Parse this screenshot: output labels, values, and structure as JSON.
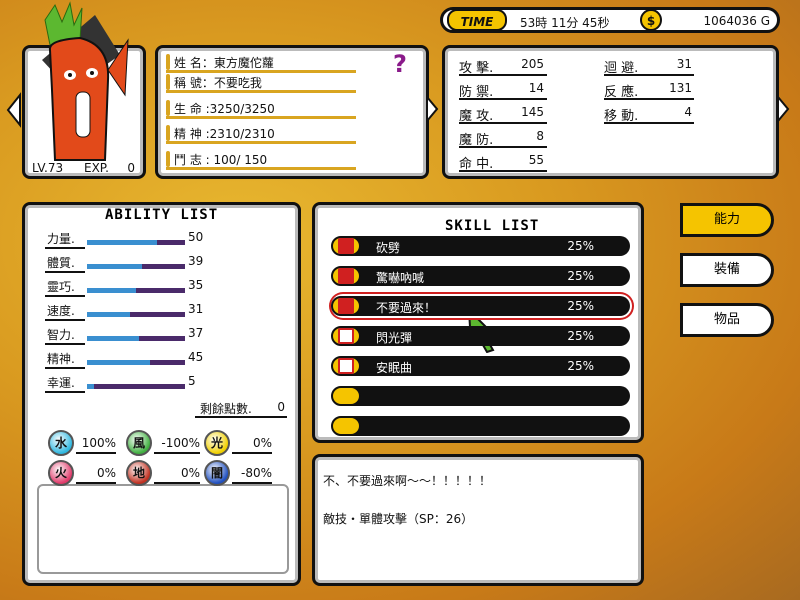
{
  "header": {
    "time_label": "TIME",
    "time": "53時 11分 45秒",
    "money_icon": "$",
    "money": "1064036 G"
  },
  "character": {
    "level": "LV.73",
    "exp_label": "EXP.",
    "exp": "0"
  },
  "profile": {
    "help": "?",
    "rows": [
      "姓 名：東方魔佗蘿",
      "稱 號：不要吃我",
      "生 命 :3250/3250",
      "精 神 :2310/2310",
      "鬥 志 : 100/ 150"
    ]
  },
  "stats": [
    {
      "label": "攻 擊.",
      "value": 205
    },
    {
      "label": "防 禦.",
      "value": 14
    },
    {
      "label": "魔 攻.",
      "value": 145
    },
    {
      "label": "魔 防.",
      "value": 8
    },
    {
      "label": "命 中.",
      "value": 55
    },
    {
      "label": "迴 避.",
      "value": 31
    },
    {
      "label": "反 應.",
      "value": 131
    },
    {
      "label": "移 動.",
      "value": 4
    }
  ],
  "ability": {
    "title": "ABILITY LIST",
    "items": [
      {
        "label": "力量.",
        "value": 50
      },
      {
        "label": "體質.",
        "value": 39
      },
      {
        "label": "靈巧.",
        "value": 35
      },
      {
        "label": "速度.",
        "value": 31
      },
      {
        "label": "智力.",
        "value": 37
      },
      {
        "label": "精神.",
        "value": 45
      },
      {
        "label": "幸運.",
        "value": 5
      }
    ],
    "remaining_label": "剩餘點數.",
    "remaining": 0,
    "elements": [
      {
        "icon": "水",
        "value": "100%"
      },
      {
        "icon": "風",
        "value": "-100%"
      },
      {
        "icon": "光",
        "value": "0%"
      },
      {
        "icon": "火",
        "value": "0%"
      },
      {
        "icon": "地",
        "value": "0%"
      },
      {
        "icon": "闇",
        "value": "-80%"
      }
    ]
  },
  "skills": {
    "title": "SKILL LIST",
    "items": [
      {
        "name": "砍劈",
        "rate": "25%"
      },
      {
        "name": "驚嚇吶喊",
        "rate": "25%"
      },
      {
        "name": "不要過來！",
        "rate": "25%"
      },
      {
        "name": "閃光彈",
        "rate": "25%"
      },
      {
        "name": "安眠曲",
        "rate": "25%"
      }
    ]
  },
  "menu": [
    "能力",
    "裝備",
    "物品"
  ],
  "description": [
    "不、不要過來啊～～！！！！！",
    "敵技・單體攻擊（SP：26）"
  ]
}
